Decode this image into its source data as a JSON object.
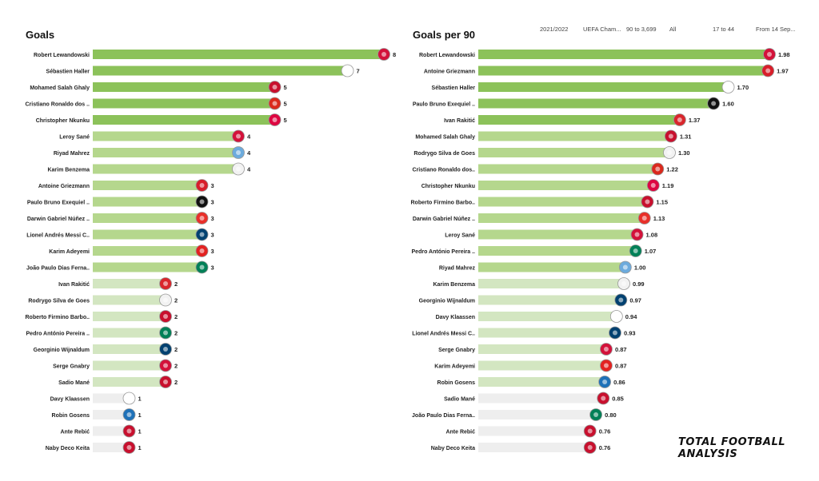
{
  "colors": {
    "bar_top": "#8cc25a",
    "bar_high": "#b5d78d",
    "bar_mid": "#d3e6c1",
    "bar_low": "#eeeeee",
    "badge_fallback": "#b0b0b0"
  },
  "filters": {
    "season": "2021/2022",
    "competition": "UEFA Cham...",
    "minutes": "90 to 3,699",
    "position": "All",
    "age": "17 to 44",
    "date": "From 14 Sep..."
  },
  "brand": "TOTAL FOOTBALL ANALYSIS",
  "chart_data": [
    {
      "type": "bar",
      "orientation": "horizontal",
      "title": "Goals",
      "xlim": [
        0,
        8
      ],
      "categories": [
        "Robert Lewandowski",
        "Sébastien Haller",
        "Mohamed  Salah Ghaly",
        "Cristiano Ronaldo dos ..",
        "Christopher Nkunku",
        "Leroy Sané",
        "Riyad Mahrez",
        "Karim Benzema",
        "Antoine Griezmann",
        "Paulo Bruno Exequiel ..",
        "Darwin Gabriel Núñez ..",
        "Lionel Andrés Messi C..",
        "Karim Adeyemi",
        "João Paulo Dias Ferna..",
        "Ivan Rakitić",
        "Rodrygo Silva de Goes",
        "Roberto Firmino Barbo..",
        "Pedro António Pereira ..",
        "Georginio Wijnaldum",
        "Serge  Gnabry",
        "Sadio Mané",
        "Davy Klaassen",
        "Robin Gosens",
        "Ante Rebić",
        "Naby Deco Keita"
      ],
      "values": [
        8,
        7,
        5,
        5,
        5,
        4,
        4,
        4,
        3,
        3,
        3,
        3,
        3,
        3,
        2,
        2,
        2,
        2,
        2,
        2,
        2,
        1,
        1,
        1,
        1
      ],
      "labels": [
        "8",
        "7",
        "5",
        "5",
        "5",
        "4",
        "4",
        "4",
        "3",
        "3",
        "3",
        "3",
        "3",
        "3",
        "2",
        "2",
        "2",
        "2",
        "2",
        "2",
        "2",
        "1",
        "1",
        "1",
        "1"
      ],
      "badges": [
        "#d3123a",
        "#ffffff",
        "#c8102e",
        "#da291c",
        "#dd0741",
        "#d3123a",
        "#6cabdd",
        "#f2f2f2",
        "#d81e2a",
        "#111111",
        "#e8302a",
        "#004170",
        "#e32221",
        "#008057",
        "#d9262c",
        "#f2f2f2",
        "#c8102e",
        "#008057",
        "#004170",
        "#d3123a",
        "#c8102e",
        "#ffffff",
        "#1e71b8",
        "#c8102e",
        "#c8102e"
      ]
    },
    {
      "type": "bar",
      "orientation": "horizontal",
      "title": "Goals per 90",
      "xlim": [
        0,
        1.98
      ],
      "categories": [
        "Robert Lewandowski",
        "Antoine Griezmann",
        "Sébastien Haller",
        "Paulo Bruno Exequiel ..",
        "Ivan Rakitić",
        "Mohamed  Salah Ghaly",
        "Rodrygo Silva de Goes",
        "Cristiano Ronaldo dos..",
        "Christopher Nkunku",
        "Roberto Firmino Barbo..",
        "Darwin Gabriel Núñez ..",
        "Leroy Sané",
        "Pedro António Pereira ..",
        "Riyad Mahrez",
        "Karim Benzema",
        "Georginio Wijnaldum",
        "Davy Klaassen",
        "Lionel Andrés Messi C..",
        "Serge  Gnabry",
        "Karim Adeyemi",
        "Robin Gosens",
        "Sadio Mané",
        "João Paulo Dias Ferna..",
        "Ante Rebić",
        "Naby Deco Keita"
      ],
      "values": [
        1.98,
        1.97,
        1.7,
        1.6,
        1.37,
        1.31,
        1.3,
        1.22,
        1.19,
        1.15,
        1.13,
        1.08,
        1.07,
        1.0,
        0.99,
        0.97,
        0.94,
        0.93,
        0.87,
        0.87,
        0.86,
        0.85,
        0.8,
        0.76,
        0.76
      ],
      "labels": [
        "1.98",
        "1.97",
        "1.70",
        "1.60",
        "1.37",
        "1.31",
        "1.30",
        "1.22",
        "1.19",
        "1.15",
        "1.13",
        "1.08",
        "1.07",
        "1.00",
        "0.99",
        "0.97",
        "0.94",
        "0.93",
        "0.87",
        "0.87",
        "0.86",
        "0.85",
        "0.80",
        "0.76",
        "0.76"
      ],
      "badges": [
        "#d3123a",
        "#d81e2a",
        "#ffffff",
        "#111111",
        "#d9262c",
        "#c8102e",
        "#f2f2f2",
        "#da291c",
        "#dd0741",
        "#c8102e",
        "#e8302a",
        "#d3123a",
        "#008057",
        "#6cabdd",
        "#f2f2f2",
        "#004170",
        "#ffffff",
        "#004170",
        "#d3123a",
        "#e32221",
        "#1e71b8",
        "#c8102e",
        "#008057",
        "#c8102e",
        "#c8102e"
      ]
    }
  ]
}
